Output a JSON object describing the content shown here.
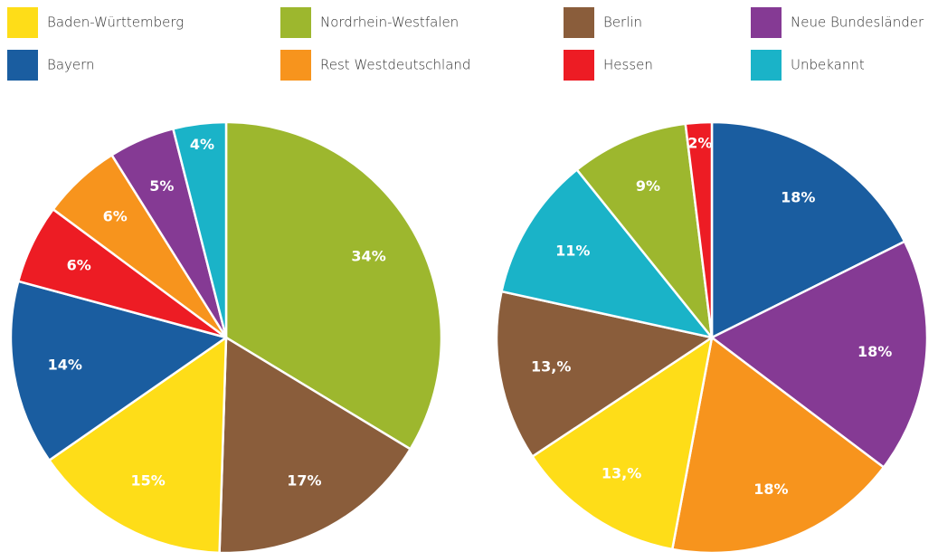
{
  "legend": [
    {
      "name": "Baden-Württemberg",
      "color": "#fedd18"
    },
    {
      "name": "Bayern",
      "color": "#1a5da0"
    },
    {
      "name": "Nordrhein-Westfalen",
      "color": "#9db72e"
    },
    {
      "name": "Rest Westdeutschland",
      "color": "#f7941d"
    },
    {
      "name": "Berlin",
      "color": "#8a5d3b"
    },
    {
      "name": "Hessen",
      "color": "#ed1c24"
    },
    {
      "name": "Neue Bundesländer",
      "color": "#853a94"
    },
    {
      "name": "Unbekannt",
      "color": "#1ab3c8"
    }
  ],
  "chart_data": [
    {
      "type": "pie",
      "categories": [
        "Nordrhein-Westfalen",
        "Berlin",
        "Baden-Württemberg",
        "Bayern",
        "Hessen",
        "Rest Westdeutschland",
        "Neue Bundesländer",
        "Unbekannt"
      ],
      "values": [
        34,
        17,
        15,
        14,
        6,
        6,
        5,
        4
      ],
      "value_labels": [
        "34%",
        "17%",
        "15%",
        "14%",
        "6%",
        "6%",
        "5%",
        "4%"
      ],
      "colors": [
        "#9db72e",
        "#8a5d3b",
        "#fedd18",
        "#1a5da0",
        "#ed1c24",
        "#f7941d",
        "#853a94",
        "#1ab3c8"
      ]
    },
    {
      "type": "pie",
      "categories": [
        "Bayern",
        "Neue Bundesländer",
        "Rest Westdeutschland",
        "Baden-Württemberg",
        "Berlin",
        "Unbekannt",
        "Nordrhein-Westfalen",
        "Hessen"
      ],
      "values": [
        18,
        18,
        18,
        13,
        13,
        11,
        9,
        2
      ],
      "value_labels": [
        "18%",
        "18%",
        "18%",
        "13,%",
        "13,%",
        "11%",
        "9%",
        "2%"
      ],
      "colors": [
        "#1a5da0",
        "#853a94",
        "#f7941d",
        "#fedd18",
        "#8a5d3b",
        "#1ab3c8",
        "#9db72e",
        "#ed1c24"
      ]
    }
  ]
}
